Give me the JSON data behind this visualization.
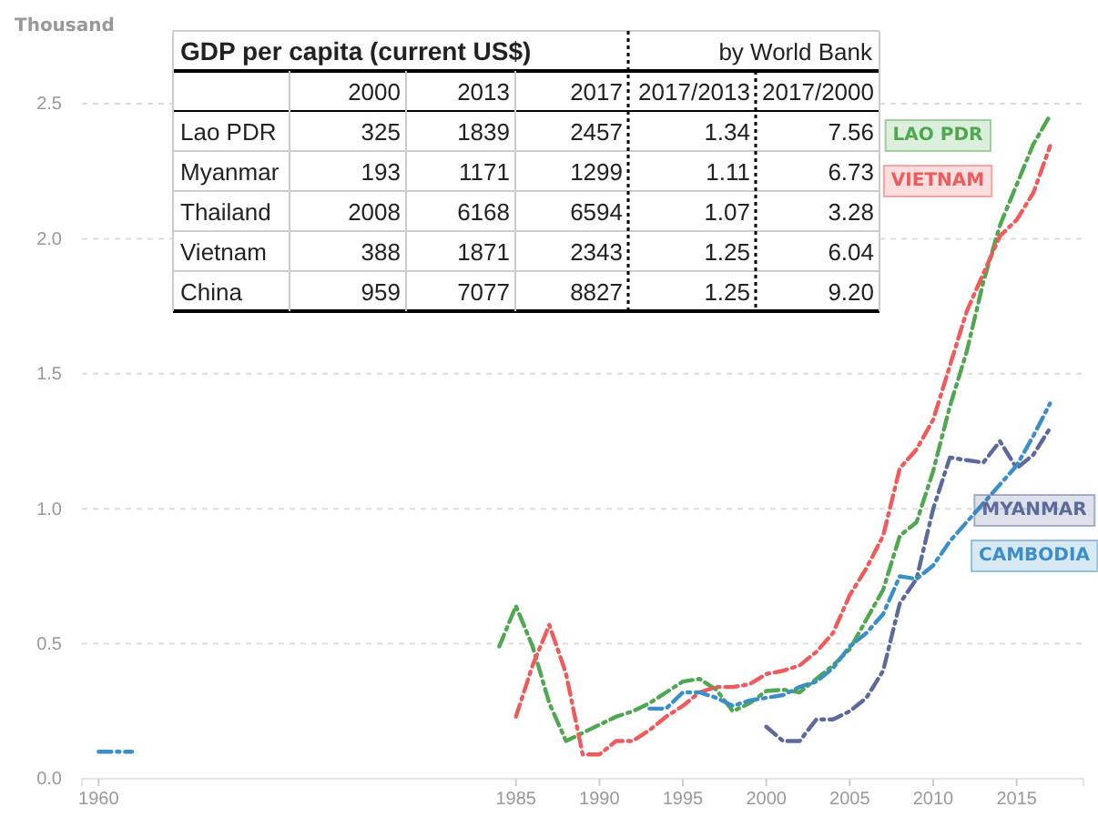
{
  "chart_data": [
    {
      "type": "line",
      "ylabel": "Thousand",
      "xlim": [
        1959,
        2019
      ],
      "ylim": [
        0,
        2.5
      ],
      "xticks": [
        1960,
        1985,
        1990,
        1995,
        2000,
        2005,
        2010,
        2015
      ],
      "yticks": [
        {
          "value": 0,
          "label": "0.0"
        },
        {
          "value": 0.5,
          "label": "0.5"
        },
        {
          "value": 1,
          "label": "1.0"
        },
        {
          "value": 1.5,
          "label": "1.5"
        },
        {
          "value": 2,
          "label": "2.0"
        },
        {
          "value": 2.5,
          "label": "2.5"
        }
      ],
      "grid": "y",
      "line_style": "dashed",
      "marker": "none",
      "series": [
        {
          "name": "LAO PDR",
          "color": "#4fa84f",
          "x": [
            1984,
            1985,
            1986,
            1987,
            1988,
            1989,
            1990,
            1991,
            1992,
            1993,
            1994,
            1995,
            1996,
            1997,
            1998,
            1999,
            2000,
            2001,
            2002,
            2003,
            2004,
            2005,
            2006,
            2007,
            2008,
            2009,
            2010,
            2011,
            2012,
            2013,
            2014,
            2015,
            2016,
            2017
          ],
          "values": [
            0.49,
            0.64,
            0.49,
            0.28,
            0.14,
            0.17,
            0.2,
            0.23,
            0.25,
            0.28,
            0.32,
            0.36,
            0.37,
            0.33,
            0.25,
            0.28,
            0.325,
            0.33,
            0.32,
            0.37,
            0.42,
            0.48,
            0.59,
            0.7,
            0.9,
            0.95,
            1.14,
            1.38,
            1.58,
            1.839,
            2.05,
            2.2,
            2.35,
            2.457
          ]
        },
        {
          "name": "VIETNAM",
          "color": "#f05a5a",
          "x": [
            1985,
            1986,
            1987,
            1988,
            1989,
            1990,
            1991,
            1992,
            1993,
            1994,
            1995,
            1996,
            1997,
            1998,
            1999,
            2000,
            2001,
            2002,
            2003,
            2004,
            2005,
            2006,
            2007,
            2008,
            2009,
            2010,
            2011,
            2012,
            2013,
            2014,
            2015,
            2016,
            2017
          ],
          "values": [
            0.23,
            0.42,
            0.57,
            0.39,
            0.09,
            0.09,
            0.14,
            0.14,
            0.18,
            0.23,
            0.27,
            0.32,
            0.34,
            0.34,
            0.35,
            0.388,
            0.4,
            0.42,
            0.47,
            0.54,
            0.68,
            0.78,
            0.9,
            1.15,
            1.22,
            1.33,
            1.53,
            1.73,
            1.871,
            2.01,
            2.07,
            2.17,
            2.343
          ]
        },
        {
          "name": "MYANMAR",
          "color": "#5b6a9a",
          "x": [
            2000,
            2001,
            2002,
            2003,
            2004,
            2005,
            2006,
            2007,
            2008,
            2009,
            2010,
            2011,
            2012,
            2013,
            2014,
            2015,
            2016,
            2017
          ],
          "values": [
            0.193,
            0.14,
            0.14,
            0.22,
            0.22,
            0.25,
            0.3,
            0.4,
            0.65,
            0.74,
            1.0,
            1.19,
            1.18,
            1.171,
            1.25,
            1.15,
            1.2,
            1.299
          ]
        },
        {
          "name": "CAMBODIA",
          "color": "#3a8fc8",
          "x": [
            1993,
            1994,
            1995,
            1996,
            1997,
            1998,
            1999,
            2000,
            2001,
            2002,
            2003,
            2004,
            2005,
            2006,
            2007,
            2008,
            2009,
            2010,
            2011,
            2012,
            2013,
            2014,
            2015,
            2016,
            2017
          ],
          "values": [
            0.26,
            0.26,
            0.32,
            0.32,
            0.3,
            0.27,
            0.29,
            0.3,
            0.31,
            0.34,
            0.36,
            0.41,
            0.49,
            0.54,
            0.61,
            0.75,
            0.74,
            0.79,
            0.88,
            0.95,
            1.02,
            1.09,
            1.16,
            1.27,
            1.39
          ]
        },
        {
          "color": "#3a8fc8",
          "x": [
            1960,
            1961,
            1962
          ],
          "values": [
            0.1,
            0.1,
            0.1
          ]
        }
      ]
    },
    {
      "type": "other",
      "title": "GDP per capita (current US$)",
      "subtitle": "by World Bank",
      "categories": [
        "2000",
        "2013",
        "2017",
        "2017/2013",
        "2017/2000"
      ],
      "y_categories": [
        "Lao PDR",
        "Myanmar",
        "Thailand",
        "Vietnam",
        "China"
      ],
      "cell_labels": [
        [
          "325",
          "1839",
          "2457",
          "1.34",
          "7.56"
        ],
        [
          "193",
          "1171",
          "1299",
          "1.11",
          "6.73"
        ],
        [
          "2008",
          "6168",
          "6594",
          "1.07",
          "3.28"
        ],
        [
          "388",
          "1871",
          "2343",
          "1.25",
          "6.04"
        ],
        [
          "959",
          "7077",
          "8827",
          "1.25",
          "9.20"
        ]
      ]
    }
  ]
}
